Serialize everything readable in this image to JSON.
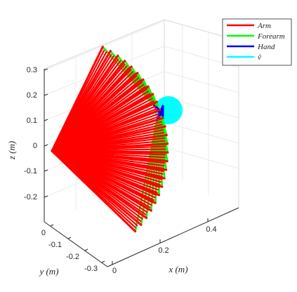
{
  "chart_data": {
    "type": "line",
    "view": "3d",
    "grid": true,
    "box": true,
    "xlabel": "x (m)",
    "ylabel": "y (m)",
    "zlabel": "z (m)",
    "xlim": [
      0,
      0.55
    ],
    "ylim": [
      -0.35,
      0.05
    ],
    "zlim": [
      -0.3,
      0.33
    ],
    "x_ticks": [
      "0",
      "0.2",
      "0.4"
    ],
    "y_ticks": [
      "0",
      "-0.1",
      "-0.2",
      "-0.3"
    ],
    "z_ticks": [
      "0.3",
      "0.2",
      "0.1",
      "0",
      "-0.1",
      "-0.2"
    ],
    "legend_position": "top-right",
    "series": [
      {
        "name": "Arm",
        "color": "#ff0000",
        "segments": 26
      },
      {
        "name": "Forearm",
        "color": "#00ff00",
        "segments": 26
      },
      {
        "name": "Hand",
        "color": "#0000ff",
        "segments": 26
      },
      {
        "name": "ṽ",
        "color": "#00ffff"
      }
    ]
  }
}
